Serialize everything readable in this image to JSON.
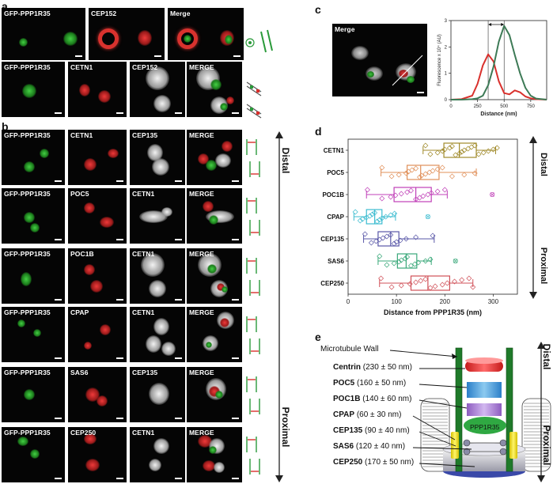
{
  "panels": {
    "a": "a",
    "b": "b",
    "c": "c",
    "d": "d",
    "e": "e"
  },
  "panel_a": {
    "row1": [
      "GFP-PPP1R35",
      "CEP152",
      "Merge"
    ],
    "row2": [
      "GFP-PPP1R35",
      "CETN1",
      "CEP152",
      "MERGE"
    ]
  },
  "panel_b": {
    "rows": [
      [
        "GFP-PPP1R35",
        "CETN1",
        "CEP135",
        "MERGE"
      ],
      [
        "GFP-PPP1R35",
        "POC5",
        "CETN1",
        "MERGE"
      ],
      [
        "GFP-PPP1R35",
        "POC1B",
        "CETN1",
        "MERGE"
      ],
      [
        "GFP-PPP1R35",
        "CPAP",
        "CETN1",
        "MERGE"
      ],
      [
        "GFP-PPP1R35",
        "SAS6",
        "CEP135",
        "MERGE"
      ],
      [
        "GFP-PPP1R35",
        "CEP250",
        "CETN1",
        "MERGE"
      ]
    ],
    "distal": "Distal",
    "proximal": "Proximal"
  },
  "panel_c": {
    "image_label": "Merge",
    "ylabel": "Fluorescence x 10⁴ (AU)",
    "xlabel": "Distance (nm)"
  },
  "panel_e": {
    "wall_label": "Microtubule Wall",
    "center_label": "PPP1R35",
    "distal": "Distal",
    "proximal": "Proximal",
    "items": [
      {
        "name": "Centrin",
        "value": "(230 ± 50 nm)"
      },
      {
        "name": "POC5",
        "value": "(160 ± 50 nm)"
      },
      {
        "name": "POC1B",
        "value": "(140 ± 60 nm)"
      },
      {
        "name": "CPAP",
        "value": "(60 ± 30 nm)"
      },
      {
        "name": "CEP135",
        "value": "(90 ± 40 nm)"
      },
      {
        "name": "SAS6",
        "value": "(120 ± 40 nm)"
      },
      {
        "name": "CEP250",
        "value": "(170 ± 50 nm)"
      }
    ]
  },
  "colors": {
    "green": "#2e9e3e",
    "red": "#d9302c",
    "white": "#e8e8e8"
  },
  "chart_data": [
    {
      "type": "line",
      "xlabel": "Distance (nm)",
      "ylabel": "Fluorescence x 10⁴ (AU)",
      "xlim": [
        0,
        900
      ],
      "ylim": [
        0,
        3
      ],
      "xticks": [
        0,
        250,
        500,
        750
      ],
      "yticks": [
        0,
        1,
        2,
        3
      ],
      "series": [
        {
          "color": "#d9302c",
          "x": [
            0,
            100,
            200,
            250,
            300,
            350,
            400,
            450,
            500,
            550,
            600,
            650,
            700,
            750,
            800,
            900
          ],
          "y": [
            0,
            0.02,
            0.15,
            0.6,
            1.3,
            1.72,
            1.45,
            0.7,
            0.25,
            0.2,
            0.35,
            0.28,
            0.12,
            0.05,
            0.02,
            0
          ]
        },
        {
          "color": "#3d7a56",
          "x": [
            0,
            100,
            200,
            250,
            300,
            350,
            400,
            450,
            500,
            550,
            600,
            650,
            700,
            750,
            800,
            900
          ],
          "y": [
            0,
            0,
            0.02,
            0.05,
            0.15,
            0.55,
            1.25,
            2.2,
            2.8,
            2.45,
            1.7,
            1.0,
            0.45,
            0.15,
            0.04,
            0
          ]
        }
      ],
      "annotation": "double arrow between the two peaks"
    },
    {
      "type": "box",
      "xlabel": "Distance from PPP1R35 (nm)",
      "xlim": [
        0,
        350
      ],
      "xticks": [
        0,
        100,
        200,
        300
      ],
      "categories": [
        "CETN1",
        "POC5",
        "POC1B",
        "CPAP",
        "CEP135",
        "SAS6",
        "CEP250"
      ],
      "distal": "Distal",
      "proximal": "Proximal",
      "boxes": [
        {
          "name": "CETN1",
          "color": "#a08a2a",
          "min": 155,
          "q1": 198,
          "median": 230,
          "q3": 265,
          "max": 305,
          "points": [
            160,
            170,
            185,
            195,
            200,
            210,
            215,
            222,
            230,
            235,
            240,
            248,
            255,
            262,
            270,
            280,
            290,
            300,
            308
          ]
        },
        {
          "name": "POC5",
          "color": "#e0905a",
          "min": 68,
          "q1": 122,
          "median": 150,
          "q3": 188,
          "max": 265,
          "points": [
            70,
            90,
            105,
            120,
            125,
            132,
            140,
            148,
            152,
            160,
            168,
            175,
            185,
            195,
            215,
            240,
            262
          ]
        },
        {
          "name": "POC1B",
          "color": "#c040b8",
          "min": 38,
          "q1": 95,
          "median": 140,
          "q3": 172,
          "max": 205,
          "outliers": [
            298
          ],
          "points": [
            40,
            70,
            88,
            98,
            110,
            122,
            130,
            140,
            148,
            155,
            165,
            172,
            185,
            200
          ]
        },
        {
          "name": "CPAP",
          "color": "#3cbcd0",
          "min": 12,
          "q1": 38,
          "median": 55,
          "q3": 70,
          "max": 98,
          "outliers": [
            165
          ],
          "points": [
            15,
            25,
            30,
            38,
            45,
            50,
            55,
            60,
            65,
            70,
            78,
            88,
            96
          ]
        },
        {
          "name": "CEP135",
          "color": "#5a58a8",
          "min": 32,
          "q1": 62,
          "median": 88,
          "q3": 105,
          "max": 178,
          "points": [
            35,
            48,
            58,
            65,
            72,
            80,
            88,
            95,
            100,
            108,
            120,
            140,
            175
          ]
        },
        {
          "name": "SAS6",
          "color": "#3aa87a",
          "min": 62,
          "q1": 102,
          "median": 120,
          "q3": 142,
          "max": 172,
          "outliers": [
            222
          ],
          "points": [
            65,
            80,
            95,
            105,
            110,
            118,
            122,
            130,
            138,
            145,
            160,
            170
          ]
        },
        {
          "name": "CEP250",
          "color": "#d05058",
          "min": 65,
          "q1": 130,
          "median": 165,
          "q3": 210,
          "max": 258,
          "points": [
            68,
            90,
            110,
            128,
            140,
            150,
            160,
            170,
            180,
            195,
            205,
            220,
            235,
            250,
            258
          ]
        }
      ]
    }
  ]
}
